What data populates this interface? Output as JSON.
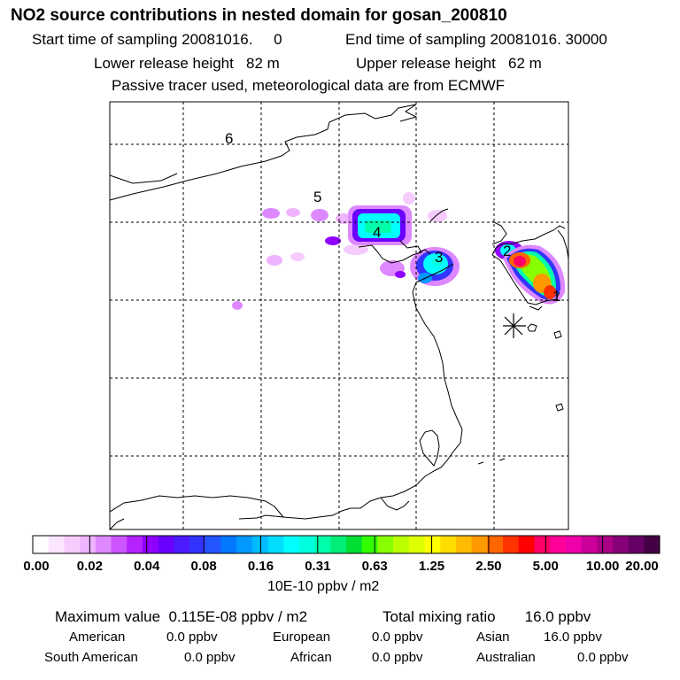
{
  "title": "NO2 source contributions in nested domain for gosan_200810",
  "sampling": {
    "start": "Start time of sampling 20081016.     0",
    "end": "End time of sampling 20081016. 30000"
  },
  "release": {
    "lower": "Lower release height   82 m",
    "upper": "Upper release height   62 m"
  },
  "note": "Passive tracer used, meteorological data are from ECMWF",
  "map": {
    "region_labels": [
      "6",
      "5",
      "4",
      "3",
      "2",
      "1"
    ],
    "marker": "receptor-star"
  },
  "colorbar": {
    "colors": [
      "#ffffff",
      "#fbe6ff",
      "#f6ccff",
      "#f0b3ff",
      "#dd88ff",
      "#cc55ff",
      "#b422ff",
      "#9000ff",
      "#6a00ff",
      "#4d1aff",
      "#3333ff",
      "#2255ff",
      "#0077ff",
      "#0099ff",
      "#00bbff",
      "#00ddff",
      "#00ffff",
      "#00ffdd",
      "#00ffaa",
      "#00ee77",
      "#00dd33",
      "#33ff00",
      "#88ff00",
      "#bbff00",
      "#ddff00",
      "#ffff00",
      "#ffdd00",
      "#ffbb00",
      "#ff9900",
      "#ff6600",
      "#ff3300",
      "#ff0000",
      "#ff0066",
      "#ff0099",
      "#ee00aa",
      "#cc0099",
      "#aa0088",
      "#880077",
      "#660066",
      "#440044"
    ],
    "ticks": [
      "0.00",
      "0.02",
      "0.04",
      "0.08",
      "0.16",
      "0.31",
      "0.63",
      "1.25",
      "2.50",
      "5.00",
      "10.00",
      "20.00"
    ],
    "units": "10E-10 ppbv / m2"
  },
  "summary": {
    "max": "Maximum value  0.115E-08 ppbv / m2",
    "total": "Total mixing ratio       16.0 ppbv",
    "regions": [
      {
        "name": "American",
        "value": "0.0 ppbv"
      },
      {
        "name": "European",
        "value": "0.0 ppbv"
      },
      {
        "name": "Asian",
        "value": "16.0 ppbv"
      },
      {
        "name": "South American",
        "value": "0.0 ppbv"
      },
      {
        "name": "African",
        "value": "0.0 ppbv"
      },
      {
        "name": "Australian",
        "value": "0.0 ppbv"
      }
    ]
  }
}
